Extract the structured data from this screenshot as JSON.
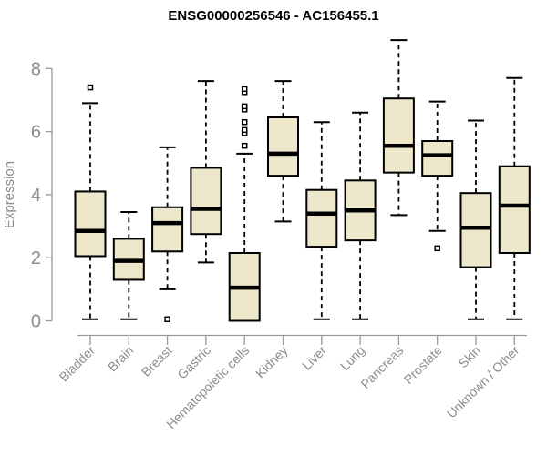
{
  "chart_data": {
    "type": "boxplot",
    "title": "ENSG00000256546 - AC156455.1",
    "ylabel": "Expression",
    "xlabel": "",
    "ylim": [
      0,
      8
    ],
    "yticks": [
      0,
      2,
      4,
      6,
      8
    ],
    "grid": false,
    "legend": "none",
    "categories": [
      "Bladder",
      "Brain",
      "Breast",
      "Gastric",
      "Hematopoietic cells",
      "Kidney",
      "Liver",
      "Lung",
      "Pancreas",
      "Prostate",
      "Skin",
      "Unknown / Other"
    ],
    "series": [
      {
        "name": "Bladder",
        "low": 0.05,
        "q1": 2.05,
        "median": 2.85,
        "q3": 4.1,
        "high": 6.9,
        "outliers": [
          7.4
        ]
      },
      {
        "name": "Brain",
        "low": 0.05,
        "q1": 1.3,
        "median": 1.9,
        "q3": 2.6,
        "high": 3.45,
        "outliers": []
      },
      {
        "name": "Breast",
        "low": 1.0,
        "q1": 2.2,
        "median": 3.1,
        "q3": 3.6,
        "high": 5.5,
        "outliers": [
          0.05
        ]
      },
      {
        "name": "Gastric",
        "low": 1.85,
        "q1": 2.75,
        "median": 3.55,
        "q3": 4.85,
        "high": 7.6,
        "outliers": []
      },
      {
        "name": "Hematopoietic cells",
        "low": null,
        "q1": 0.0,
        "median": 1.05,
        "q3": 2.15,
        "high": 5.3,
        "outliers": [
          5.55,
          5.95,
          6.05,
          6.3,
          6.7,
          6.8,
          7.25,
          7.35
        ]
      },
      {
        "name": "Kidney",
        "low": 3.15,
        "q1": 4.6,
        "median": 5.3,
        "q3": 6.45,
        "high": 7.6,
        "outliers": []
      },
      {
        "name": "Liver",
        "low": 0.05,
        "q1": 2.35,
        "median": 3.4,
        "q3": 4.15,
        "high": 6.3,
        "outliers": []
      },
      {
        "name": "Lung",
        "low": 0.05,
        "q1": 2.55,
        "median": 3.5,
        "q3": 4.45,
        "high": 6.6,
        "outliers": []
      },
      {
        "name": "Pancreas",
        "low": 3.35,
        "q1": 4.7,
        "median": 5.55,
        "q3": 7.05,
        "high": 8.9,
        "outliers": []
      },
      {
        "name": "Prostate",
        "low": 2.85,
        "q1": 4.6,
        "median": 5.25,
        "q3": 5.7,
        "high": 6.95,
        "outliers": [
          2.3
        ]
      },
      {
        "name": "Skin",
        "low": 0.05,
        "q1": 1.7,
        "median": 2.95,
        "q3": 4.05,
        "high": 6.35,
        "outliers": []
      },
      {
        "name": "Unknown / Other",
        "low": 0.05,
        "q1": 2.15,
        "median": 3.65,
        "q3": 4.9,
        "high": 7.7,
        "outliers": []
      }
    ],
    "colors": {
      "box_fill": "#EDE7CB",
      "box_stroke": "#000000",
      "median_stroke": "#000000",
      "whisker_stroke": "#000000",
      "outlier_fill": "#ffffff",
      "outlier_stroke": "#000000",
      "axis_line": "#999999",
      "axis_text": "#8c8c8c",
      "title_text": "#000000",
      "background": "#ffffff"
    }
  }
}
